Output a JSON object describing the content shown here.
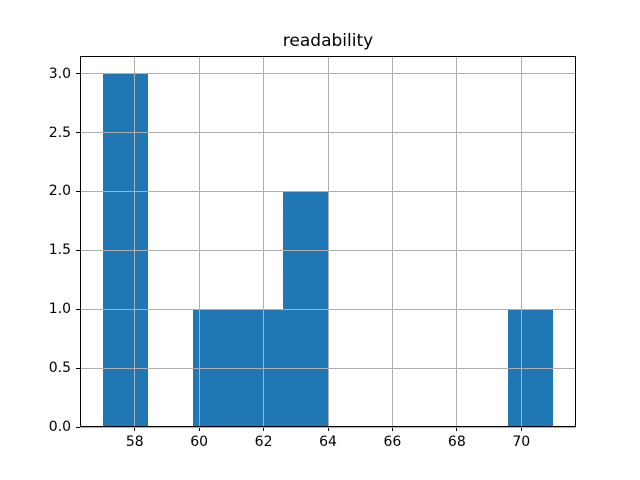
{
  "figure": {
    "background": "#ffffff"
  },
  "chart_data": {
    "type": "bar",
    "subtype": "histogram",
    "title": "readability",
    "xlabel": "",
    "ylabel": "",
    "bin_edges": [
      57.0,
      58.4,
      59.8,
      61.2,
      62.6,
      64.0,
      65.4,
      66.8,
      68.2,
      69.6,
      71.0
    ],
    "counts": [
      3,
      0,
      1,
      1,
      2,
      0,
      0,
      0,
      0,
      1
    ],
    "xlim": [
      56.3,
      71.7
    ],
    "ylim": [
      0,
      3.15
    ],
    "x_ticks": [
      58,
      60,
      62,
      64,
      66,
      68,
      70
    ],
    "x_tick_labels": [
      "58",
      "60",
      "62",
      "64",
      "66",
      "68",
      "70"
    ],
    "y_ticks": [
      0.0,
      0.5,
      1.0,
      1.5,
      2.0,
      2.5,
      3.0
    ],
    "y_tick_labels": [
      "0.0",
      "0.5",
      "1.0",
      "1.5",
      "2.0",
      "2.5",
      "3.0"
    ],
    "grid": true,
    "grid_above_bars": true,
    "legend": false,
    "colors": {
      "bar": "#1f77b4",
      "grid": "#b0b0b0",
      "spine": "#000000",
      "text": "#000000",
      "background": "#ffffff"
    }
  }
}
